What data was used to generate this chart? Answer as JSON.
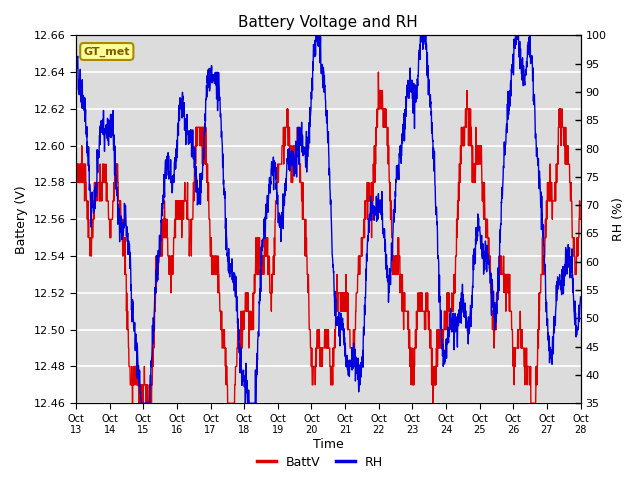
{
  "title": "Battery Voltage and RH",
  "xlabel": "Time",
  "ylabel_left": "Battery (V)",
  "ylabel_right": "RH (%)",
  "xlim": [
    0,
    15
  ],
  "ylim_left": [
    12.46,
    12.66
  ],
  "ylim_right": [
    35,
    100
  ],
  "yticks_left": [
    12.46,
    12.48,
    12.5,
    12.52,
    12.54,
    12.56,
    12.58,
    12.6,
    12.62,
    12.64,
    12.66
  ],
  "yticks_right": [
    35,
    40,
    45,
    50,
    55,
    60,
    65,
    70,
    75,
    80,
    85,
    90,
    95,
    100
  ],
  "xtick_labels": [
    "Oct 13",
    "Oct 14",
    "Oct 15",
    "Oct 16",
    "Oct 17",
    "Oct 18",
    "Oct 19",
    "Oct 20",
    "Oct 21",
    "Oct 22",
    "Oct 23",
    "Oct 24",
    "Oct 25",
    "Oct 26",
    "Oct 27",
    "Oct 28"
  ],
  "station_label": "GT_met",
  "station_label_color": "#7B5B00",
  "station_label_bg": "#FFFF99",
  "station_label_edge": "#AA8800",
  "batt_color": "#DD0000",
  "rh_color": "#0000DD",
  "legend_batt": "BattV",
  "legend_rh": "RH",
  "bg_color": "#DCDCDC",
  "fig_bg": "#FFFFFF",
  "grid_color": "#FFFFFF"
}
